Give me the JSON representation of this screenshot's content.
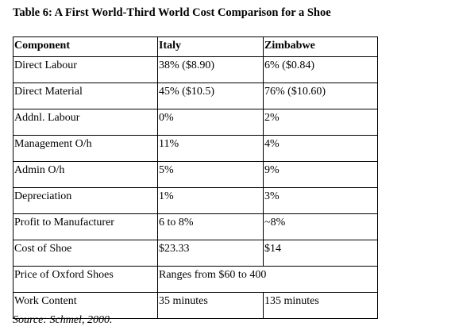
{
  "document": {
    "title": "Table 6: A First World-Third World Cost Comparison for a Shoe",
    "source": "Source: Schmel, 2000."
  },
  "table": {
    "headers": [
      "Component",
      "Italy",
      "Zimbabwe"
    ],
    "rows": [
      {
        "component": "Direct Labour",
        "italy": "38% ($8.90)",
        "zimbabwe": "6% ($0.84)"
      },
      {
        "component": "Direct Material",
        "italy": "45% ($10.5)",
        "zimbabwe": "76% ($10.60)"
      },
      {
        "component": "Addnl. Labour",
        "italy": "0%",
        "zimbabwe": "2%"
      },
      {
        "component": "Management O/h",
        "italy": "11%",
        "zimbabwe": "4%"
      },
      {
        "component": "Admin O/h",
        "italy": "5%",
        "zimbabwe": "9%"
      },
      {
        "component": "Depreciation",
        "italy": "1%",
        "zimbabwe": "3%"
      },
      {
        "component": "Profit to Manufacturer",
        "italy": "6 to 8%",
        "zimbabwe": "~8%"
      },
      {
        "component": "Cost of Shoe",
        "italy": "$23.33",
        "zimbabwe": "$14"
      },
      {
        "component": "Price of Oxford Shoes",
        "italy_zimbabwe_merged": "Ranges from $60 to 400"
      },
      {
        "component": "Work Content",
        "italy": "35 minutes",
        "zimbabwe": "135 minutes"
      }
    ]
  }
}
